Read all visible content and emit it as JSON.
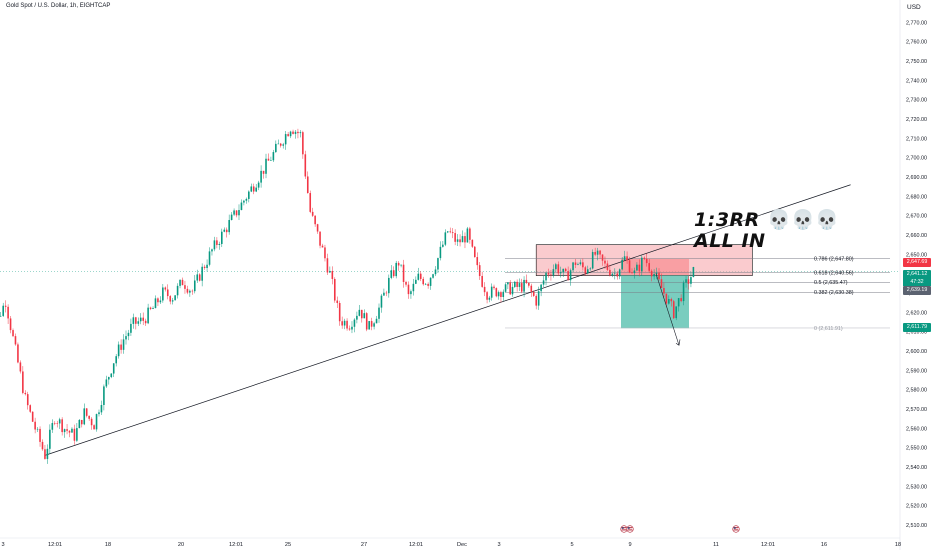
{
  "header": {
    "symbol_title": "Gold Spot / U.S. Dollar, 1h, EIGHTCAP",
    "currency": "USD"
  },
  "colors": {
    "up": "#089981",
    "down": "#f23645",
    "target_zone": "#22ab94",
    "stop_zone": "#f77c80",
    "entry_box": "#f5a0a5"
  },
  "annotations": {
    "line1_text": "1:3RR",
    "line1_icons": "💀💀💀",
    "line2_text": "ALL IN"
  },
  "price_tags": {
    "stop": "2,647.69",
    "last": "2,641.12",
    "countdown": "47:32",
    "entry": "2,639.19",
    "target": "2,611.79"
  },
  "chart_data": {
    "type": "candlestick",
    "title": "Gold Spot / U.S. Dollar, 1h, EIGHTCAP",
    "ylim": [
      2505,
      2780
    ],
    "y_ticks": [
      "2,510.00",
      "2,520.00",
      "2,530.00",
      "2,540.00",
      "2,550.00",
      "2,560.00",
      "2,570.00",
      "2,580.00",
      "2,590.00",
      "2,600.00",
      "2,610.00",
      "2,620.00",
      "2,630.00",
      "2,640.00",
      "2,650.00",
      "2,660.00",
      "2,670.00",
      "2,680.00",
      "2,690.00",
      "2,700.00",
      "2,710.00",
      "2,720.00",
      "2,730.00",
      "2,740.00",
      "2,750.00",
      "2,760.00",
      "2,770.00"
    ],
    "x_ticks": [
      "3",
      "12:01",
      "18",
      "20",
      "12:01",
      "25",
      "27",
      "12:01",
      "Dec",
      "3",
      "5",
      "9",
      "11",
      "12:01",
      "16",
      "18"
    ],
    "price_path": [
      [
        "Nov 15 00:00",
        2621
      ],
      [
        "Nov 15 06:00",
        2614
      ],
      [
        "Nov 15 12:00",
        2626
      ],
      [
        "Nov 15 18:00",
        2600
      ],
      [
        "Nov 16 00:00",
        2575
      ],
      [
        "Nov 16 06:00",
        2560
      ],
      [
        "Nov 16 12:00",
        2546
      ],
      [
        "Nov 16 18:00",
        2566
      ],
      [
        "Nov 17 00:00",
        2560
      ],
      [
        "Nov 17 06:00",
        2556
      ],
      [
        "Nov 17 12:00",
        2568
      ],
      [
        "Nov 17 18:00",
        2562
      ],
      [
        "Nov 18 00:00",
        2580
      ],
      [
        "Nov 18 06:00",
        2595
      ],
      [
        "Nov 18 12:00",
        2606
      ],
      [
        "Nov 18 18:00",
        2614
      ],
      [
        "Nov 19 00:00",
        2616
      ],
      [
        "Nov 19 06:00",
        2622
      ],
      [
        "Nov 19 12:00",
        2630
      ],
      [
        "Nov 19 18:00",
        2628
      ],
      [
        "Nov 20 00:00",
        2636
      ],
      [
        "Nov 20 06:00",
        2631
      ],
      [
        "Nov 20 12:00",
        2642
      ],
      [
        "Nov 20 18:00",
        2652
      ],
      [
        "Nov 21 00:00",
        2660
      ],
      [
        "Nov 21 06:00",
        2668
      ],
      [
        "Nov 21 12:00",
        2676
      ],
      [
        "Nov 21 18:00",
        2684
      ],
      [
        "Nov 22 00:00",
        2692
      ],
      [
        "Nov 22 06:00",
        2700
      ],
      [
        "Nov 22 12:00",
        2708
      ],
      [
        "Nov 22 18:00",
        2716
      ],
      [
        "Nov 24 00:00",
        2712
      ],
      [
        "Nov 24 06:00",
        2672
      ],
      [
        "Nov 24 12:00",
        2656
      ],
      [
        "Nov 24 18:00",
        2640
      ],
      [
        "Nov 25 00:00",
        2616
      ],
      [
        "Nov 25 06:00",
        2614
      ],
      [
        "Nov 25 12:00",
        2622
      ],
      [
        "Nov 25 18:00",
        2612
      ],
      [
        "Nov 26 00:00",
        2622
      ],
      [
        "Nov 26 06:00",
        2636
      ],
      [
        "Nov 26 12:00",
        2646
      ],
      [
        "Nov 26 18:00",
        2628
      ],
      [
        "Nov 27 00:00",
        2638
      ],
      [
        "Nov 27 06:00",
        2636
      ],
      [
        "Nov 27 12:00",
        2648
      ],
      [
        "Nov 27 18:00",
        2662
      ],
      [
        "Nov 28 00:00",
        2656
      ],
      [
        "Nov 28 06:00",
        2660
      ],
      [
        "Nov 28 12:00",
        2642
      ],
      [
        "Nov 28 18:00",
        2630
      ],
      [
        "Dec 1 18:00",
        2634
      ],
      [
        "Dec 2 00:00",
        2626
      ],
      [
        "Dec 2 06:00",
        2640
      ],
      [
        "Dec 2 12:00",
        2644
      ],
      [
        "Dec 2 18:00",
        2638
      ],
      [
        "Dec 3 00:00",
        2646
      ],
      [
        "Dec 3 06:00",
        2642
      ],
      [
        "Dec 3 12:00",
        2650
      ],
      [
        "Dec 3 18:00",
        2644
      ],
      [
        "Dec 4 00:00",
        2640
      ],
      [
        "Dec 4 06:00",
        2648
      ],
      [
        "Dec 4 12:00",
        2640
      ],
      [
        "Dec 4 18:00",
        2648
      ],
      [
        "Dec 5 00:00",
        2640
      ],
      [
        "Dec 5 06:00",
        2630
      ],
      [
        "Dec 5 12:00",
        2620
      ],
      [
        "Dec 5 18:00",
        2632
      ],
      [
        "Dec 6 00:00",
        2641
      ]
    ],
    "trendline": {
      "from": [
        "Nov 16 12:00",
        2546
      ],
      "to": [
        "Dec 10 00:00",
        2686
      ]
    },
    "fib_levels": [
      {
        "label": "0.786 (2,647.80)",
        "price": 2647.8
      },
      {
        "label": "0.618 (2,640.56)",
        "price": 2640.56
      },
      {
        "label": "0.5 (2,635.47)",
        "price": 2635.47
      },
      {
        "label": "0.382 (2,630.38)",
        "price": 2630.38
      },
      {
        "label": "0 (2,611.91)",
        "price": 2611.91
      }
    ],
    "position": {
      "type": "short",
      "entry": 2639.19,
      "stop": 2647.69,
      "target": 2611.79
    },
    "range_box": {
      "from": "Dec 2 00:00",
      "to": "Dec 7 12:00",
      "top": 2655,
      "bottom": 2639
    }
  }
}
